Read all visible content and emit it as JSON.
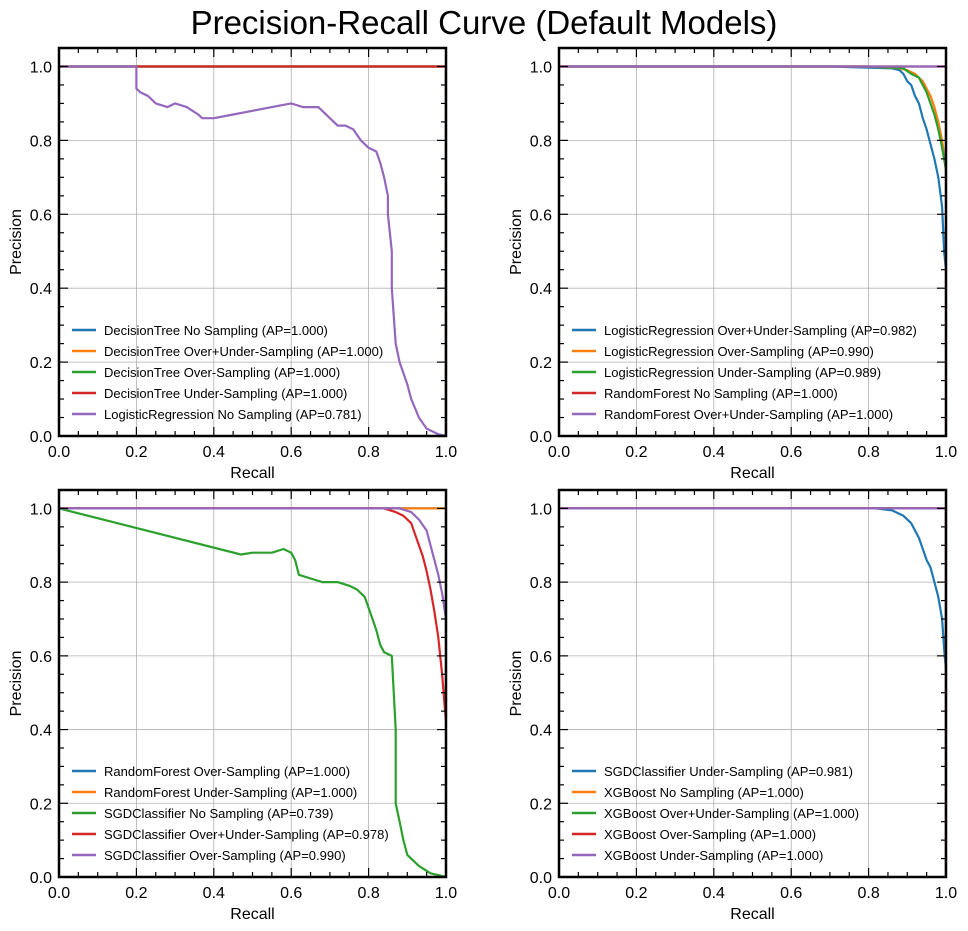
{
  "title": "Precision-Recall Curve (Default Models)",
  "colors": [
    "#1f77b4",
    "#ff7f0e",
    "#2ca02c",
    "#d62728",
    "#9467bd"
  ],
  "chart_data": [
    {
      "type": "line",
      "xlabel": "Recall",
      "ylabel": "Precision",
      "xlim": [
        0,
        1
      ],
      "ylim": [
        0,
        1.05
      ],
      "xticks": [
        "0.0",
        "0.2",
        "0.4",
        "0.6",
        "0.8",
        "1.0"
      ],
      "yticks": [
        "0.0",
        "0.2",
        "0.4",
        "0.6",
        "0.8",
        "1.0"
      ],
      "grid": true,
      "legend_position": "lower-left",
      "series": [
        {
          "name": "DecisionTree No Sampling (AP=1.000)",
          "x": [
            0,
            1,
            1
          ],
          "y": [
            1,
            1,
            0
          ]
        },
        {
          "name": "DecisionTree Over+Under-Sampling (AP=1.000)",
          "x": [
            0,
            1,
            1
          ],
          "y": [
            1,
            1,
            0
          ]
        },
        {
          "name": "DecisionTree Over-Sampling (AP=1.000)",
          "x": [
            0,
            1,
            1
          ],
          "y": [
            1,
            1,
            0
          ]
        },
        {
          "name": "DecisionTree Under-Sampling (AP=1.000)",
          "x": [
            0,
            1,
            1
          ],
          "y": [
            1,
            1,
            0
          ]
        },
        {
          "name": "LogisticRegression No Sampling (AP=0.781)",
          "x": [
            0,
            0.2,
            0.2,
            0.21,
            0.23,
            0.25,
            0.28,
            0.3,
            0.33,
            0.36,
            0.37,
            0.4,
            0.45,
            0.5,
            0.55,
            0.6,
            0.63,
            0.67,
            0.7,
            0.72,
            0.74,
            0.76,
            0.78,
            0.8,
            0.82,
            0.83,
            0.84,
            0.85,
            0.85,
            0.86,
            0.86,
            0.87,
            0.88,
            0.89,
            0.9,
            0.91,
            0.93,
            0.95,
            0.98,
            1.0
          ],
          "y": [
            1,
            1,
            0.94,
            0.93,
            0.92,
            0.9,
            0.89,
            0.9,
            0.89,
            0.87,
            0.86,
            0.86,
            0.87,
            0.88,
            0.89,
            0.9,
            0.89,
            0.89,
            0.86,
            0.84,
            0.84,
            0.83,
            0.8,
            0.78,
            0.77,
            0.74,
            0.7,
            0.65,
            0.6,
            0.5,
            0.4,
            0.25,
            0.2,
            0.17,
            0.14,
            0.1,
            0.05,
            0.02,
            0.005,
            0.0
          ]
        }
      ]
    },
    {
      "type": "line",
      "xlabel": "Recall",
      "ylabel": "Precision",
      "xlim": [
        0,
        1
      ],
      "ylim": [
        0,
        1.05
      ],
      "xticks": [
        "0.0",
        "0.2",
        "0.4",
        "0.6",
        "0.8",
        "1.0"
      ],
      "yticks": [
        "0.0",
        "0.2",
        "0.4",
        "0.6",
        "0.8",
        "1.0"
      ],
      "grid": true,
      "legend_position": "lower-left",
      "series": [
        {
          "name": "LogisticRegression Over+Under-Sampling (AP=0.982)",
          "x": [
            0,
            0.7,
            0.8,
            0.86,
            0.88,
            0.89,
            0.9,
            0.91,
            0.92,
            0.93,
            0.94,
            0.95,
            0.96,
            0.97,
            0.98,
            0.99,
            0.995,
            1.0
          ],
          "y": [
            1,
            1,
            0.997,
            0.995,
            0.99,
            0.98,
            0.96,
            0.95,
            0.92,
            0.9,
            0.86,
            0.83,
            0.79,
            0.75,
            0.7,
            0.62,
            0.5,
            0.45
          ]
        },
        {
          "name": "LogisticRegression Over-Sampling (AP=0.990)",
          "x": [
            0,
            0.8,
            0.88,
            0.9,
            0.92,
            0.94,
            0.95,
            0.96,
            0.97,
            0.98,
            0.99,
            1.0
          ],
          "y": [
            1,
            1,
            0.995,
            0.99,
            0.98,
            0.96,
            0.94,
            0.92,
            0.89,
            0.85,
            0.8,
            0.72
          ]
        },
        {
          "name": "LogisticRegression Under-Sampling (AP=0.989)",
          "x": [
            0,
            0.8,
            0.89,
            0.91,
            0.93,
            0.95,
            0.96,
            0.97,
            0.98,
            0.99,
            1.0
          ],
          "y": [
            1,
            1,
            0.995,
            0.98,
            0.97,
            0.93,
            0.9,
            0.87,
            0.83,
            0.78,
            0.72
          ]
        },
        {
          "name": "RandomForest No Sampling (AP=1.000)",
          "x": [
            0,
            1,
            1
          ],
          "y": [
            1,
            1,
            0
          ]
        },
        {
          "name": "RandomForest Over+Under-Sampling (AP=1.000)",
          "x": [
            0,
            1,
            1
          ],
          "y": [
            1,
            1,
            0.7
          ]
        }
      ]
    },
    {
      "type": "line",
      "xlabel": "Recall",
      "ylabel": "Precision",
      "xlim": [
        0,
        1
      ],
      "ylim": [
        0,
        1.05
      ],
      "xticks": [
        "0.0",
        "0.2",
        "0.4",
        "0.6",
        "0.8",
        "1.0"
      ],
      "yticks": [
        "0.0",
        "0.2",
        "0.4",
        "0.6",
        "0.8",
        "1.0"
      ],
      "grid": true,
      "legend_position": "lower-left",
      "series": [
        {
          "name": "RandomForest Over-Sampling (AP=1.000)",
          "x": [
            0,
            1,
            1
          ],
          "y": [
            1,
            1,
            0
          ]
        },
        {
          "name": "RandomForest Under-Sampling (AP=1.000)",
          "x": [
            0,
            1,
            1
          ],
          "y": [
            1,
            1,
            0.45
          ]
        },
        {
          "name": "SGDClassifier No Sampling (AP=0.739)",
          "x": [
            0,
            0.47,
            0.5,
            0.53,
            0.55,
            0.58,
            0.6,
            0.61,
            0.62,
            0.65,
            0.68,
            0.7,
            0.72,
            0.75,
            0.77,
            0.79,
            0.8,
            0.81,
            0.82,
            0.83,
            0.84,
            0.86,
            0.87,
            0.87,
            0.88,
            0.89,
            0.9,
            0.93,
            0.96,
            1.0
          ],
          "y": [
            1,
            0.875,
            0.88,
            0.88,
            0.88,
            0.89,
            0.88,
            0.86,
            0.82,
            0.81,
            0.8,
            0.8,
            0.8,
            0.79,
            0.78,
            0.76,
            0.73,
            0.7,
            0.67,
            0.63,
            0.61,
            0.6,
            0.4,
            0.2,
            0.15,
            0.1,
            0.06,
            0.03,
            0.01,
            0.0
          ]
        },
        {
          "name": "SGDClassifier Over+Under-Sampling (AP=0.978)",
          "x": [
            0,
            0.84,
            0.87,
            0.89,
            0.91,
            0.92,
            0.93,
            0.94,
            0.95,
            0.96,
            0.97,
            0.98,
            0.99,
            1.0
          ],
          "y": [
            1,
            1,
            0.99,
            0.98,
            0.96,
            0.93,
            0.9,
            0.87,
            0.83,
            0.78,
            0.72,
            0.65,
            0.55,
            0.42
          ]
        },
        {
          "name": "SGDClassifier Over-Sampling (AP=0.990)",
          "x": [
            0,
            0.88,
            0.91,
            0.93,
            0.95,
            0.96,
            0.97,
            0.98,
            0.99,
            1.0
          ],
          "y": [
            1,
            1,
            0.99,
            0.97,
            0.94,
            0.9,
            0.86,
            0.82,
            0.77,
            0.7
          ]
        }
      ]
    },
    {
      "type": "line",
      "xlabel": "Recall",
      "ylabel": "Precision",
      "xlim": [
        0,
        1
      ],
      "ylim": [
        0,
        1.05
      ],
      "xticks": [
        "0.0",
        "0.2",
        "0.4",
        "0.6",
        "0.8",
        "1.0"
      ],
      "yticks": [
        "0.0",
        "0.2",
        "0.4",
        "0.6",
        "0.8",
        "1.0"
      ],
      "grid": true,
      "legend_position": "lower-left",
      "series": [
        {
          "name": "SGDClassifier Under-Sampling (AP=0.981)",
          "x": [
            0,
            0.82,
            0.86,
            0.89,
            0.91,
            0.92,
            0.93,
            0.94,
            0.95,
            0.96,
            0.97,
            0.98,
            0.99,
            0.995,
            1.0
          ],
          "y": [
            1,
            1,
            0.995,
            0.98,
            0.96,
            0.94,
            0.92,
            0.89,
            0.86,
            0.84,
            0.8,
            0.76,
            0.7,
            0.62,
            0.56
          ]
        },
        {
          "name": "XGBoost No Sampling (AP=1.000)",
          "x": [
            0,
            1,
            1
          ],
          "y": [
            1,
            1,
            0
          ]
        },
        {
          "name": "XGBoost Over+Under-Sampling (AP=1.000)",
          "x": [
            0,
            1,
            1
          ],
          "y": [
            1,
            1,
            0
          ]
        },
        {
          "name": "XGBoost Over-Sampling (AP=1.000)",
          "x": [
            0,
            1,
            1
          ],
          "y": [
            1,
            1,
            0
          ]
        },
        {
          "name": "XGBoost Under-Sampling (AP=1.000)",
          "x": [
            0,
            1,
            1
          ],
          "y": [
            1,
            1,
            0
          ]
        }
      ]
    }
  ]
}
